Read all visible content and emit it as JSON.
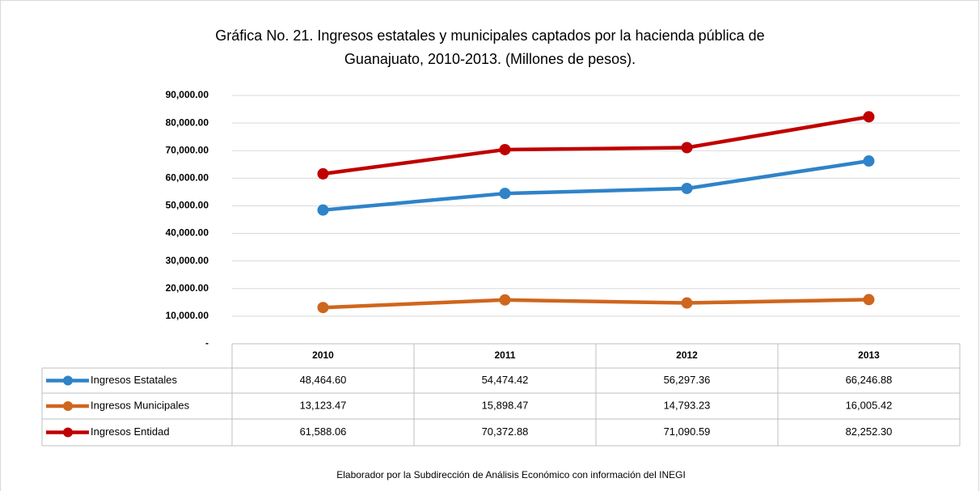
{
  "chart_data": {
    "type": "line",
    "title": [
      "Gráfica No. 21. Ingresos estatales y municipales captados por la hacienda pública de",
      "Guanajuato, 2010-2013. (Millones de pesos)."
    ],
    "categories": [
      "2010",
      "2011",
      "2012",
      "2013"
    ],
    "series": [
      {
        "name": "Ingresos Estatales",
        "color": "#2f83c8",
        "values": [
          48464.6,
          54474.42,
          56297.36,
          66246.88
        ],
        "value_labels": [
          "48,464.60",
          "54,474.42",
          "56,297.36",
          "66,246.88"
        ]
      },
      {
        "name": "Ingresos Municipales",
        "color": "#cf661e",
        "values": [
          13123.47,
          15898.47,
          14793.23,
          16005.42
        ],
        "value_labels": [
          "13,123.47",
          "15,898.47",
          "14,793.23",
          "16,005.42"
        ]
      },
      {
        "name": "Ingresos Entidad",
        "color": "#c00000",
        "values": [
          61588.06,
          70372.88,
          71090.59,
          82252.3
        ],
        "value_labels": [
          "61,588.06",
          "70,372.88",
          "71,090.59",
          "82,252.30"
        ]
      }
    ],
    "ylim": [
      0,
      90000
    ],
    "yticks": [
      {
        "value": 0,
        "label": "-"
      },
      {
        "value": 10000,
        "label": "10,000.00"
      },
      {
        "value": 20000,
        "label": "20,000.00"
      },
      {
        "value": 30000,
        "label": "30,000.00"
      },
      {
        "value": 40000,
        "label": "40,000.00"
      },
      {
        "value": 50000,
        "label": "50,000.00"
      },
      {
        "value": 60000,
        "label": "60,000.00"
      },
      {
        "value": 70000,
        "label": "70,000.00"
      },
      {
        "value": 80000,
        "label": "80,000.00"
      },
      {
        "value": 90000,
        "label": "90,000.00"
      }
    ],
    "grid": true,
    "source": "Elaborador por la Subdirección de Análisis Económico con información del INEGI"
  }
}
